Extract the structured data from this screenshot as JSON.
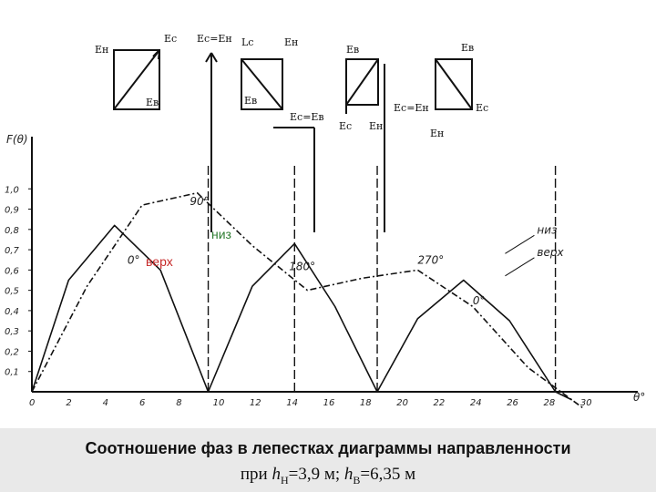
{
  "caption": {
    "line1": "Соотношение фаз в лепестках диаграммы направленности",
    "line2_prefix": "при ",
    "h_symbol": "h",
    "sub_n": "Н",
    "n_value": "=3,9 м; ",
    "sub_v": "В",
    "v_value": "=6,35 м"
  },
  "annotations": {
    "niz": "низ",
    "verh": "верх"
  },
  "vector_labels": {
    "d1": [
      "Eн",
      "Eс",
      "Eв"
    ],
    "d2": [
      "Ec=Eн"
    ],
    "d3": [
      "Lc",
      "Eн",
      "Eв",
      "Ec=Eв"
    ],
    "d4": [
      "Eв",
      "Ec",
      "Eн",
      "Ec=Eн"
    ],
    "d5": [
      "Eв",
      "Eс",
      "Eн"
    ]
  },
  "chart_data": {
    "type": "line",
    "ylabel": "F(θ)",
    "xlabel": "θ°",
    "xlim": [
      0,
      31
    ],
    "ylim": [
      0,
      1.1
    ],
    "x_ticks": [
      "0",
      "2",
      "4",
      "6",
      "8",
      "10",
      "12",
      "14",
      "16",
      "18",
      "20",
      "22",
      "24",
      "26",
      "28",
      "30"
    ],
    "y_ticks": [
      "0,1",
      "0,2",
      "0,3",
      "0,4",
      "0,5",
      "0,6",
      "0,7",
      "0,8",
      "0,9",
      "1,0"
    ],
    "series": [
      {
        "name": "низ",
        "style": "dashdot",
        "x": [
          0,
          3,
          6,
          9,
          12,
          15,
          18,
          21,
          24,
          27,
          28.8,
          30
        ],
        "y": [
          0.0,
          0.52,
          0.92,
          0.98,
          0.72,
          0.5,
          0.56,
          0.6,
          0.42,
          0.12,
          0.0,
          -0.08
        ]
      },
      {
        "name": "верх",
        "style": "solid",
        "x": [
          0,
          2,
          4.5,
          7,
          9.6,
          12,
          14.3,
          16.5,
          18.8,
          21,
          23.5,
          26,
          28.5,
          29.4
        ],
        "y": [
          0.0,
          0.55,
          0.82,
          0.6,
          0.0,
          0.52,
          0.73,
          0.42,
          0.0,
          0.36,
          0.55,
          0.35,
          0.0,
          -0.04
        ]
      }
    ],
    "lobe_labels": [
      {
        "text": "0°",
        "x": 5.2,
        "y": 0.63
      },
      {
        "text": "90°",
        "x": 8.6,
        "y": 0.92
      },
      {
        "text": "180°",
        "x": 14.0,
        "y": 0.6
      },
      {
        "text": "270°",
        "x": 21.0,
        "y": 0.63
      },
      {
        "text": "0°",
        "x": 24.0,
        "y": 0.43
      }
    ],
    "marker_lines_x": [
      9.6,
      14.3,
      18.8,
      28.5
    ]
  }
}
